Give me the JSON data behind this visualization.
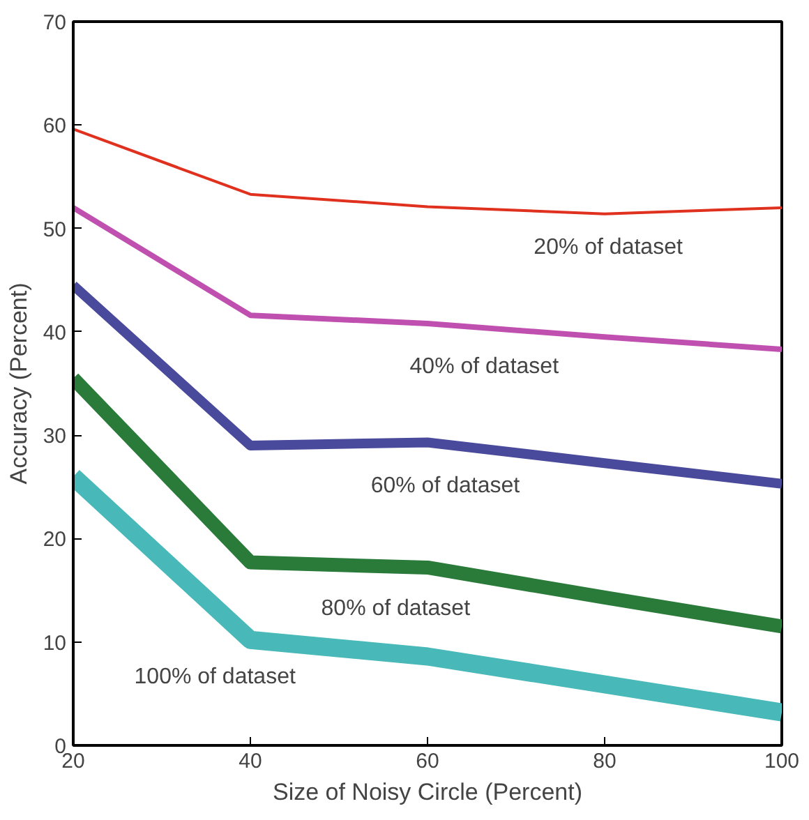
{
  "chart_data": {
    "type": "line",
    "xlabel": "Size of Noisy Circle (Percent)",
    "ylabel": "Accuracy (Percent)",
    "x": [
      20,
      40,
      60,
      80,
      100
    ],
    "series": [
      {
        "name": "20% of dataset",
        "color": "#e0301e",
        "values": [
          59.6,
          53.3,
          52.1,
          51.4,
          52.0
        ]
      },
      {
        "name": "40% of dataset",
        "color": "#c050b0",
        "values": [
          52.0,
          41.6,
          40.8,
          39.5,
          38.3
        ]
      },
      {
        "name": "60% of dataset",
        "color": "#4a4a9c",
        "values": [
          44.5,
          29.0,
          29.3,
          27.3,
          25.3
        ]
      },
      {
        "name": "80% of dataset",
        "color": "#2a7a3a",
        "values": [
          35.5,
          17.7,
          17.2,
          14.3,
          11.5
        ]
      },
      {
        "name": "100% of dataset",
        "color": "#48b8b8",
        "values": [
          26.0,
          10.2,
          8.6,
          5.9,
          3.2
        ]
      }
    ],
    "xlim": [
      20,
      100
    ],
    "ylim": [
      0,
      70
    ],
    "xticks": [
      20,
      40,
      60,
      80,
      100
    ],
    "yticks": [
      0,
      10,
      20,
      30,
      40,
      50,
      60,
      70
    ],
    "grid": false,
    "marker": "none",
    "line_style": "solid"
  }
}
